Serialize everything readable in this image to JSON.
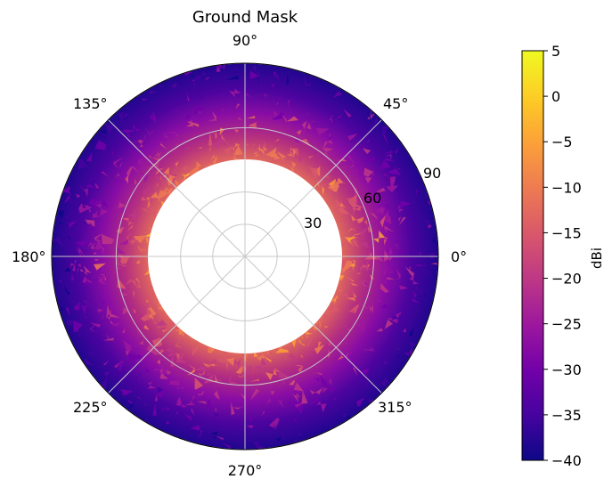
{
  "chart_data": {
    "type": "heatmap",
    "projection": "polar",
    "title": "Ground Mask",
    "angular_ticks": [
      "0°",
      "45°",
      "90°",
      "135°",
      "180°",
      "225°",
      "270°",
      "315°"
    ],
    "radial_ticks": [
      "30",
      "60",
      "90"
    ],
    "radial_axis": {
      "label_values": [
        30,
        60,
        90
      ],
      "masked_inner_radius": 45,
      "outer": 90
    },
    "colorbar": {
      "label": "dBi",
      "range": [
        -40,
        5
      ],
      "ticks": [
        5,
        0,
        -5,
        -10,
        -15,
        -20,
        -25,
        -30,
        -35,
        -40
      ],
      "tick_labels": [
        "5",
        "0",
        "−5",
        "−10",
        "−15",
        "−20",
        "−25",
        "−30",
        "−35",
        "−40"
      ],
      "colormap": "plasma"
    },
    "grid": true
  },
  "colors": {
    "plasma_stops": [
      "#0d0887",
      "#46039f",
      "#7201a8",
      "#9c179e",
      "#bd3786",
      "#d8576b",
      "#ed7953",
      "#fb9f3a",
      "#fdca26",
      "#f0f921"
    ]
  }
}
